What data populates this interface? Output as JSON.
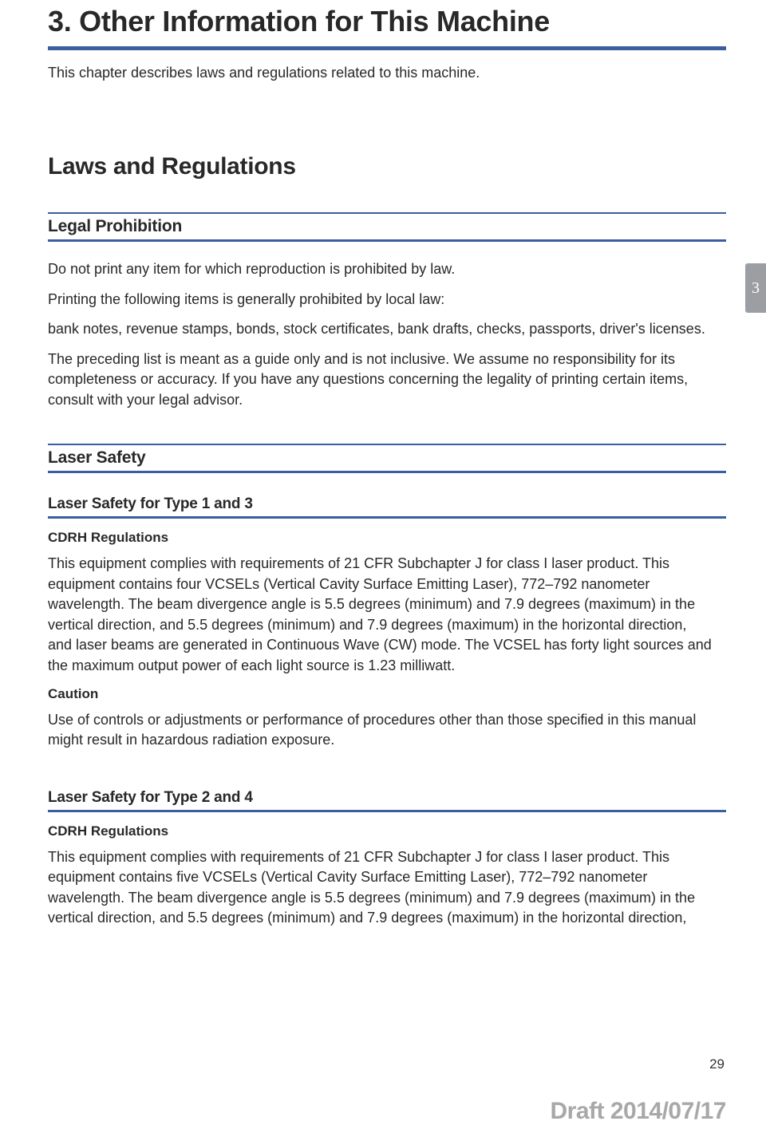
{
  "chapter": {
    "title": "3. Other Information for This Machine",
    "intro": "This chapter describes laws and regulations related to this machine."
  },
  "tab_number": "3",
  "section1": {
    "title": "Laws and Regulations",
    "sub1": {
      "title": "Legal Prohibition",
      "p1": "Do not print any item for which reproduction is prohibited by law.",
      "p2": "Printing the following items is generally prohibited by local law:",
      "p3": "bank notes, revenue stamps, bonds, stock certificates, bank drafts, checks, passports, driver's licenses.",
      "p4": "The preceding list is meant as a guide only and is not inclusive. We assume no responsibility for its completeness or accuracy. If you have any questions concerning the legality of printing certain items, consult with your legal advisor."
    },
    "sub2": {
      "title": "Laser Safety",
      "part1": {
        "title": "Laser Safety for Type 1 and 3",
        "h5a": "CDRH Regulations",
        "p1": "This equipment complies with requirements of 21 CFR Subchapter J for class I laser product. This equipment contains four VCSELs (Vertical Cavity Surface Emitting Laser), 772–792 nanometer wavelength. The beam divergence angle is 5.5 degrees (minimum) and 7.9 degrees (maximum) in the vertical direction, and 5.5 degrees (minimum) and 7.9 degrees (maximum) in the horizontal direction, and laser beams are generated in Continuous Wave (CW) mode. The VCSEL has forty light sources and the maximum output power of each light source is 1.23 milliwatt.",
        "h5b": "Caution",
        "p2": "Use of controls or adjustments or performance of procedures other than those specified in this manual might result in hazardous radiation exposure."
      },
      "part2": {
        "title": "Laser Safety for Type 2 and 4",
        "h5a": "CDRH Regulations",
        "p1": "This equipment complies with requirements of 21 CFR Subchapter J for class I laser product. This equipment contains five VCSELs (Vertical Cavity Surface Emitting Laser), 772–792 nanometer wavelength. The beam divergence angle is 5.5 degrees (minimum) and 7.9 degrees (maximum) in the vertical direction, and 5.5 degrees (minimum) and 7.9 degrees (maximum) in the horizontal direction,"
      }
    }
  },
  "page_number": "29",
  "draft_stamp": "Draft 2014/07/17",
  "colors": {
    "rule": "#3a5e9e",
    "text": "#282828",
    "tab_bg": "#9b9fa3",
    "draft": "#a8a8a8"
  }
}
